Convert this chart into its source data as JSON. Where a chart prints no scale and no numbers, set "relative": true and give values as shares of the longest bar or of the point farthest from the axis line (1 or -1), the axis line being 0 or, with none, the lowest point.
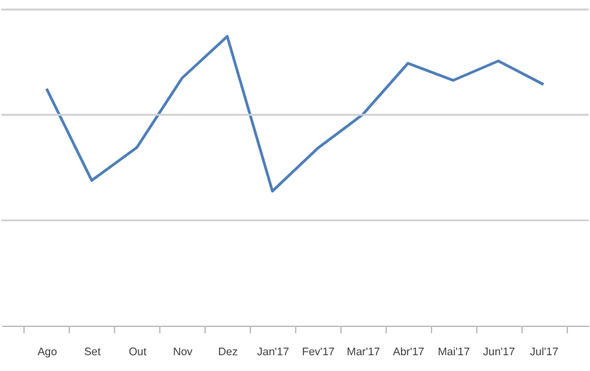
{
  "chart_data": {
    "type": "line",
    "relative": true,
    "marker": "none",
    "line_style": "solid",
    "categories": [
      "Ago",
      "Set",
      "Out",
      "Nov",
      "Dez",
      "Jan'17",
      "Fev'17",
      "Mar'17",
      "Abr'17",
      "Mai'17",
      "Jun'17",
      "Jul'17"
    ],
    "series": [
      {
        "color": "#4f7fb8",
        "values": [
          0.819,
          0.502,
          0.616,
          0.856,
          1,
          0.465,
          0.613,
          0.73,
          0.907,
          0.848,
          0.915,
          0.834
        ]
      }
    ],
    "ref_lines": [
      {
        "axis": "y",
        "value": 0.364,
        "color": "#d0d0d0"
      },
      {
        "axis": "y",
        "value": 0.729,
        "color": "#d0d0d0"
      },
      {
        "axis": "y",
        "value": 1.093,
        "color": "#d0d0d0"
      }
    ]
  }
}
